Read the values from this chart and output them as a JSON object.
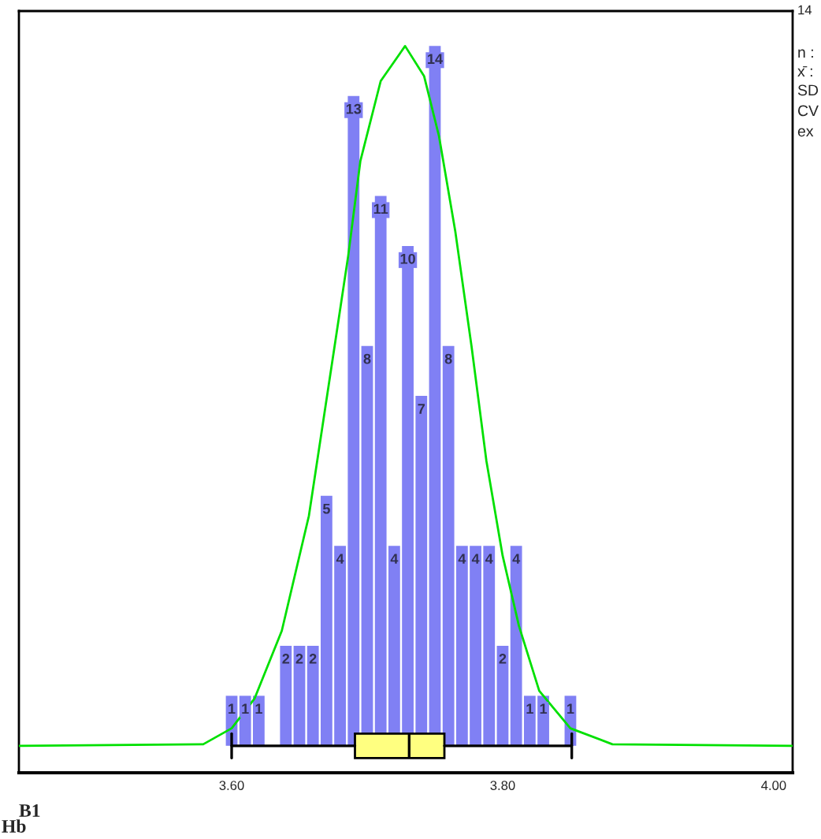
{
  "chart_data": [
    {
      "type": "histogram",
      "xlim": [
        3.443,
        4.014
      ],
      "ylim": [
        -0.54,
        14.7
      ],
      "tick_labels": "x",
      "xticks": [
        {
          "value": 3.6,
          "label": "3.60"
        },
        {
          "value": 3.8,
          "label": "3.80"
        },
        {
          "value": 4.0,
          "label": "4.00"
        }
      ],
      "bins": [
        3.595,
        3.605,
        3.615,
        3.625,
        3.635,
        3.645,
        3.655,
        3.665,
        3.675,
        3.685,
        3.695,
        3.705,
        3.715,
        3.725,
        3.735,
        3.745,
        3.755,
        3.765,
        3.775,
        3.785,
        3.795,
        3.805,
        3.815,
        3.825,
        3.835,
        3.845,
        3.855
      ],
      "values": [
        1,
        1,
        1,
        0,
        2,
        2,
        2,
        5,
        4,
        13,
        8,
        11,
        4,
        10,
        7,
        14,
        8,
        4,
        4,
        4,
        2,
        4,
        1,
        1,
        0,
        1
      ],
      "value_labels": [
        "1",
        "1",
        "1",
        null,
        "2",
        "2",
        "2",
        "5",
        "4",
        "13",
        "8",
        "11",
        "4",
        "10",
        "7",
        "14",
        "8",
        "4",
        "4",
        "4",
        "2",
        "4",
        "1",
        "1",
        null,
        "1"
      ],
      "color": "#8080f4",
      "series": [
        {
          "type": "line",
          "color": "#00e000",
          "x": [
            3.443,
            3.579,
            3.6,
            3.617,
            3.637,
            3.657,
            3.676,
            3.686,
            3.695,
            3.71,
            3.728,
            3.742,
            3.753,
            3.765,
            3.777,
            3.788,
            3.8,
            3.812,
            3.827,
            3.85,
            3.881,
            4.014
          ],
          "values": [
            0,
            0.03,
            0.35,
            0.95,
            2.3,
            4.6,
            8.0,
            9.8,
            11.7,
            13.3,
            14.0,
            13.4,
            12.2,
            10.3,
            8.0,
            5.7,
            3.8,
            2.4,
            1.1,
            0.35,
            0.03,
            0
          ]
        }
      ],
      "grid": false,
      "annotations": [
        "14",
        "n :",
        "x̄ :",
        "SD",
        "CV",
        "ex",
        "B1",
        "Hb"
      ]
    },
    {
      "type": "box",
      "orientation": "horizontal",
      "categories": [
        null
      ],
      "color": "#ffff80",
      "xlim": [
        3.443,
        4.014
      ],
      "tick_labels": false,
      "boxes": [
        {
          "low": 3.6,
          "q1": 3.691,
          "median": 3.731,
          "q3": 3.757,
          "high": 3.851
        }
      ]
    }
  ]
}
